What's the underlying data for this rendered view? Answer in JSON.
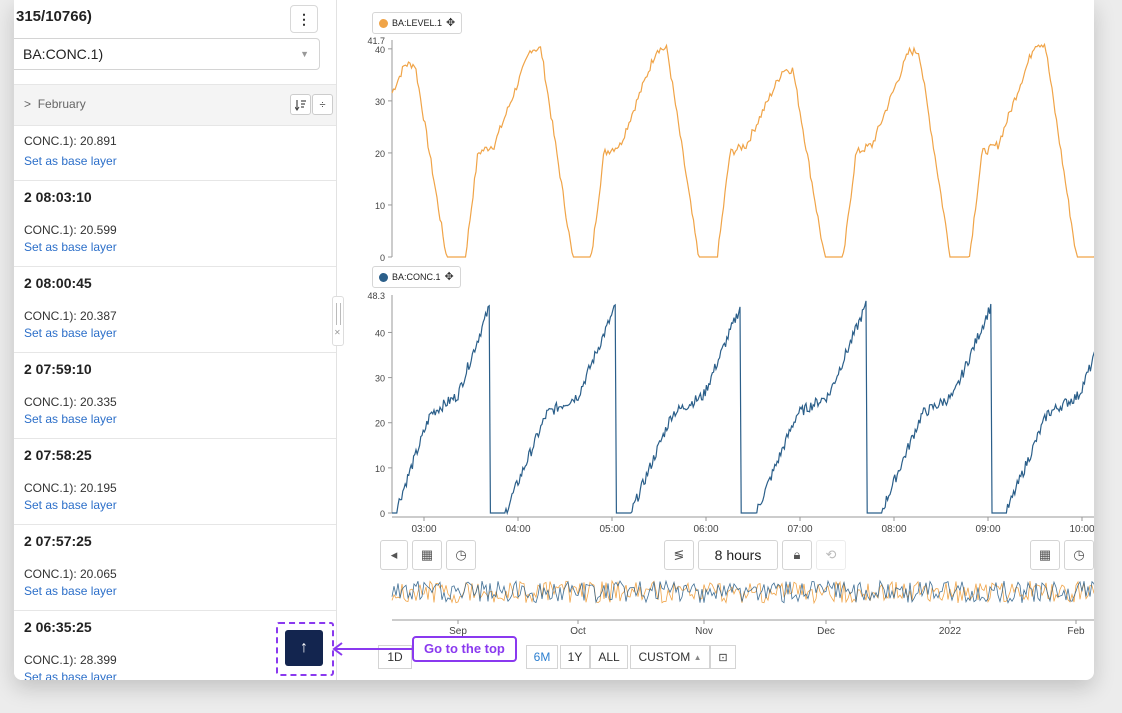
{
  "left_panel": {
    "title": "315/10766)",
    "kebab": "⋮",
    "select_value": "BA:CONC.1)",
    "month_label": "February",
    "month_chevron": ">",
    "sort_icon": "sort-icon",
    "divider_icon": "÷",
    "entries": [
      {
        "time": "",
        "value": "CONC.1): 20.891",
        "link": "Set as base layer"
      },
      {
        "time": "2 08:03:10",
        "value": "CONC.1): 20.599",
        "link": "Set as base layer"
      },
      {
        "time": "2 08:00:45",
        "value": "CONC.1): 20.387",
        "link": "Set as base layer"
      },
      {
        "time": "2 07:59:10",
        "value": "CONC.1): 20.335",
        "link": "Set as base layer"
      },
      {
        "time": "2 07:58:25",
        "value": "CONC.1): 20.195",
        "link": "Set as base layer"
      },
      {
        "time": "2 07:57:25",
        "value": "CONC.1): 20.065",
        "link": "Set as base layer"
      },
      {
        "time": "2 06:35:25",
        "value": "CONC.1): 28.399",
        "link": "Set as base layer"
      }
    ]
  },
  "go_top": {
    "arrow": "↑",
    "annotation": "Go to the top"
  },
  "charts": {
    "top": {
      "legend": "BA:LEVEL.1",
      "color": "#f0a448",
      "max_label": "41.7",
      "ticks": [
        "0",
        "10",
        "20",
        "30",
        "40"
      ]
    },
    "bottom": {
      "legend": "BA:CONC.1",
      "color": "#2b5f8a",
      "max_label": "48.3",
      "ticks": [
        "0",
        "10",
        "20",
        "30",
        "40"
      ]
    },
    "time_ticks": [
      "03:00",
      "04:00",
      "05:00",
      "06:00",
      "07:00",
      "08:00",
      "09:00",
      "10:00"
    ],
    "overview_ticks": [
      "Sep",
      "Oct",
      "Nov",
      "Dec",
      "2022",
      "Feb"
    ]
  },
  "controls": {
    "duration": "8 hours",
    "ranges": [
      "1D",
      "6M",
      "1Y",
      "ALL"
    ],
    "active_range": "6M",
    "custom": "CUSTOM"
  }
}
